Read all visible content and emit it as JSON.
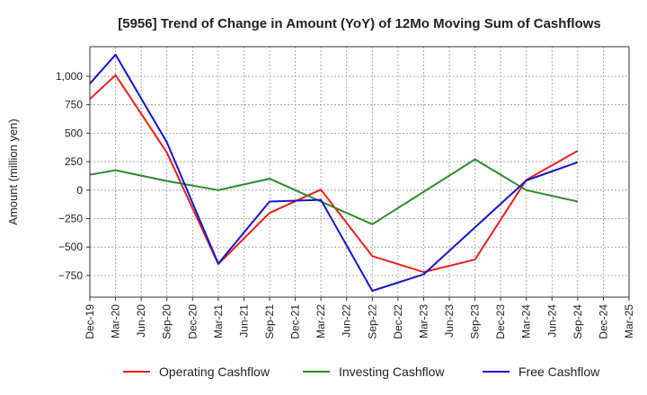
{
  "chart_data": {
    "type": "line",
    "title": "[5956]  Trend of Change in Amount (YoY) of 12Mo Moving Sum of Cashflows",
    "xlabel": "",
    "ylabel": "Amount (million yen)",
    "ylim": [
      -940,
      1260
    ],
    "yticks": [
      -750,
      -500,
      -250,
      0,
      250,
      500,
      750,
      1000
    ],
    "ytick_labels": [
      "−750",
      "−500",
      "−250",
      "0",
      "250",
      "500",
      "750",
      "1,000"
    ],
    "categories": [
      "Dec-19",
      "Mar-20",
      "Jun-20",
      "Sep-20",
      "Dec-20",
      "Mar-21",
      "Jun-21",
      "Sep-21",
      "Dec-21",
      "Mar-22",
      "Jun-22",
      "Sep-22",
      "Dec-22",
      "Mar-23",
      "Jun-23",
      "Sep-23",
      "Dec-23",
      "Mar-24",
      "Jun-24",
      "Sep-24",
      "Dec-24",
      "Mar-25"
    ],
    "grid": true,
    "legend_position": "bottom",
    "series": [
      {
        "name": "Operating Cashflow",
        "color": "#e8201c",
        "values": [
          800,
          1010,
          null,
          330,
          null,
          -650,
          null,
          -200,
          null,
          5,
          null,
          -580,
          null,
          -720,
          null,
          -610,
          null,
          90,
          null,
          345,
          null,
          null
        ]
      },
      {
        "name": "Investing Cashflow",
        "color": "#2c8a2c",
        "values": [
          135,
          175,
          null,
          80,
          null,
          0,
          null,
          100,
          null,
          -100,
          null,
          -300,
          null,
          null,
          null,
          270,
          null,
          0,
          null,
          -100,
          null,
          null
        ]
      },
      {
        "name": "Free Cashflow",
        "color": "#1515cc",
        "values": [
          935,
          1190,
          null,
          420,
          null,
          -645,
          null,
          -100,
          null,
          -85,
          null,
          -885,
          null,
          -740,
          null,
          null,
          null,
          85,
          null,
          245,
          null,
          null
        ]
      }
    ]
  }
}
